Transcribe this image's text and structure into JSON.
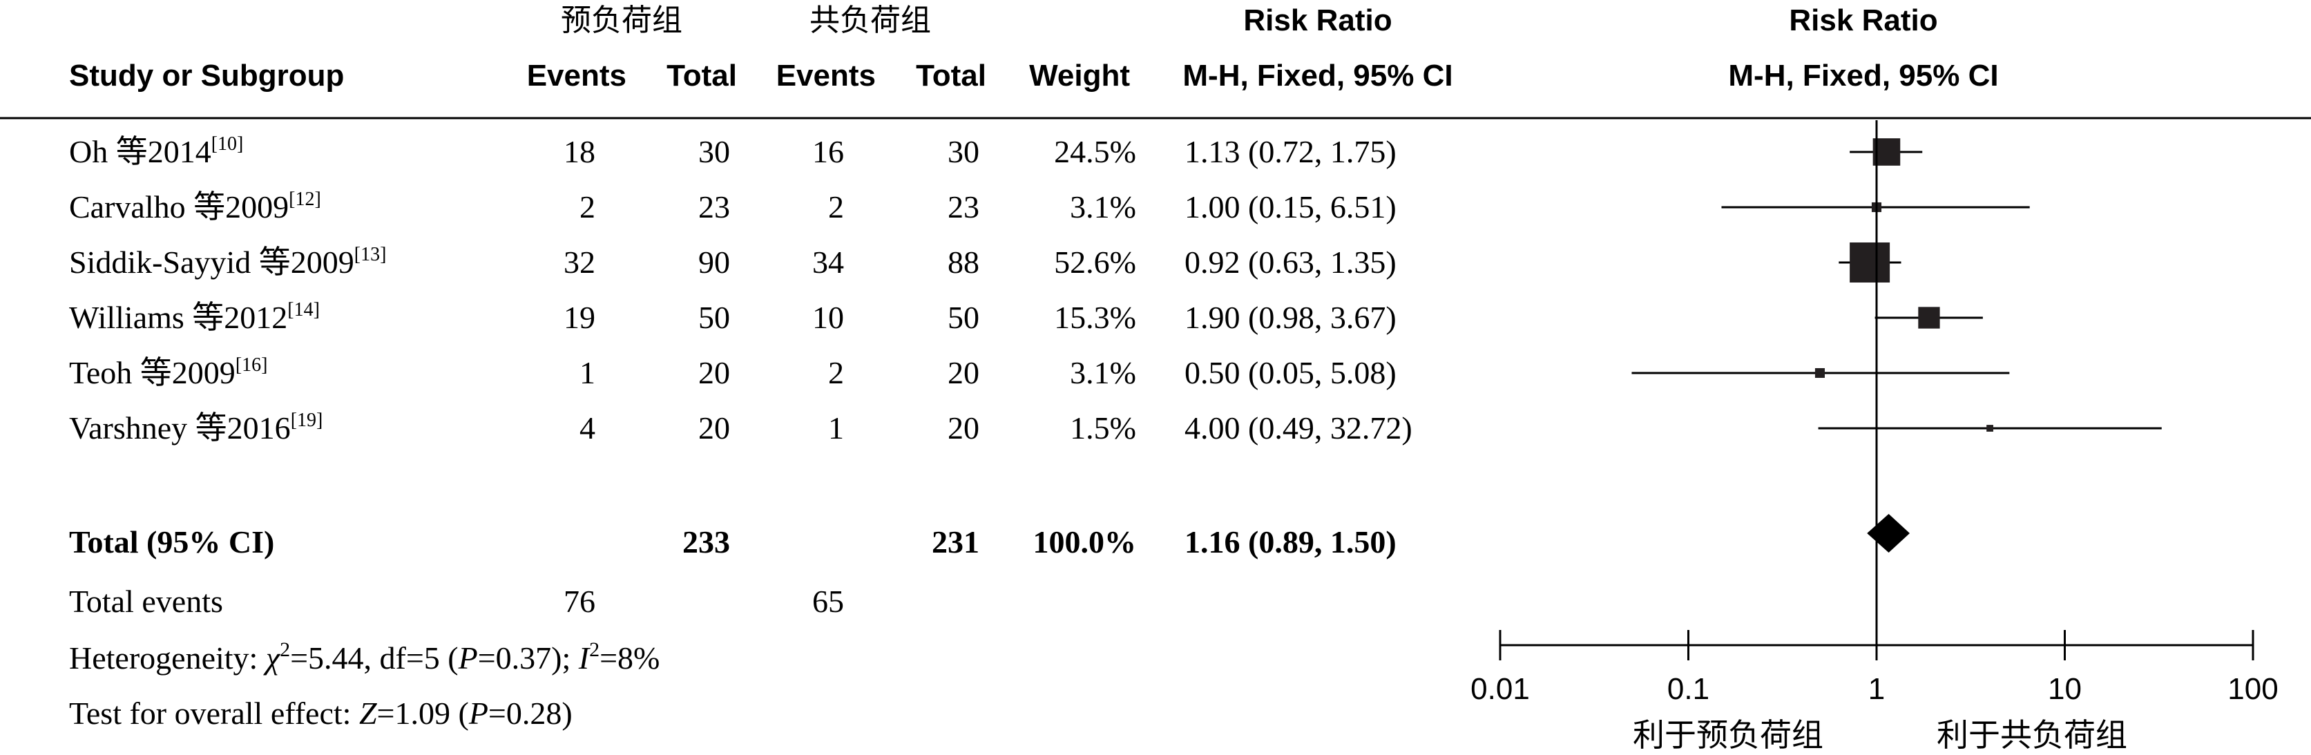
{
  "chart_data": {
    "type": "forest",
    "group_headers": {
      "experimental": "预负荷组",
      "control": "共负荷组"
    },
    "columns": {
      "study": "Study or Subgroup",
      "events": "Events",
      "total": "Total",
      "weight": "Weight",
      "rr_title": "Risk Ratio",
      "rr_method": "M-H, Fixed, 95% CI"
    },
    "plot_header": {
      "title": "Risk Ratio",
      "method": "M-H, Fixed, 95% CI"
    },
    "studies": [
      {
        "name": "Oh 等2014",
        "ref": "[10]",
        "e_events": "18",
        "e_total": "30",
        "c_events": "16",
        "c_total": "30",
        "weight": "24.5%",
        "ci_text": "1.13 (0.72, 1.75)",
        "rr": 1.13,
        "lo": 0.72,
        "hi": 1.75,
        "w": 24.5
      },
      {
        "name": "Carvalho 等2009",
        "ref": "[12]",
        "e_events": "2",
        "e_total": "23",
        "c_events": "2",
        "c_total": "23",
        "weight": "3.1%",
        "ci_text": "1.00 (0.15, 6.51)",
        "rr": 1.0,
        "lo": 0.15,
        "hi": 6.51,
        "w": 3.1
      },
      {
        "name": "Siddik-Sayyid 等2009",
        "ref": "[13]",
        "e_events": "32",
        "e_total": "90",
        "c_events": "34",
        "c_total": "88",
        "weight": "52.6%",
        "ci_text": "0.92 (0.63, 1.35)",
        "rr": 0.92,
        "lo": 0.63,
        "hi": 1.35,
        "w": 52.6
      },
      {
        "name": "Williams 等2012",
        "ref": "[14]",
        "e_events": "19",
        "e_total": "50",
        "c_events": "10",
        "c_total": "50",
        "weight": "15.3%",
        "ci_text": "1.90 (0.98, 3.67)",
        "rr": 1.9,
        "lo": 0.98,
        "hi": 3.67,
        "w": 15.3
      },
      {
        "name": "Teoh 等2009",
        "ref": "[16]",
        "e_events": "1",
        "e_total": "20",
        "c_events": "2",
        "c_total": "20",
        "weight": "3.1%",
        "ci_text": "0.50 (0.05, 5.08)",
        "rr": 0.5,
        "lo": 0.05,
        "hi": 5.08,
        "w": 3.1
      },
      {
        "name": "Varshney 等2016",
        "ref": "[19]",
        "e_events": "4",
        "e_total": "20",
        "c_events": "1",
        "c_total": "20",
        "weight": "1.5%",
        "ci_text": "4.00 (0.49, 32.72)",
        "rr": 4.0,
        "lo": 0.49,
        "hi": 32.72,
        "w": 1.5
      }
    ],
    "total": {
      "label": "Total (95% CI)",
      "e_total": "233",
      "c_total": "231",
      "weight": "100.0%",
      "ci_text": "1.16 (0.89, 1.50)",
      "rr": 1.16,
      "lo": 0.89,
      "hi": 1.5
    },
    "total_events": {
      "label": "Total events",
      "e": "76",
      "c": "65"
    },
    "heterogeneity": {
      "prefix": "Heterogeneity: ",
      "chi": "χ",
      "chi_sup": "2",
      "chi_val": "=5.44, df=5 (",
      "p": "P",
      "p_val": "=0.37); ",
      "i": "I",
      "i_sup": "2",
      "i_val": "=8%"
    },
    "overall": {
      "prefix": "Test for overall effect: ",
      "z": "Z",
      "z_val": "=1.09 (",
      "p": "P",
      "p_val": "=0.28)"
    },
    "axis": {
      "scale": "log",
      "ticks": [
        0.01,
        0.1,
        1,
        10,
        100
      ],
      "tick_labels": [
        "0.01",
        "0.1",
        "1",
        "10",
        "100"
      ],
      "null_line": 1
    },
    "favours": {
      "left": "利于预负荷组",
      "right": "利于共负荷组"
    },
    "colors": {
      "ink": "#000000",
      "marker": "#231f20"
    }
  }
}
